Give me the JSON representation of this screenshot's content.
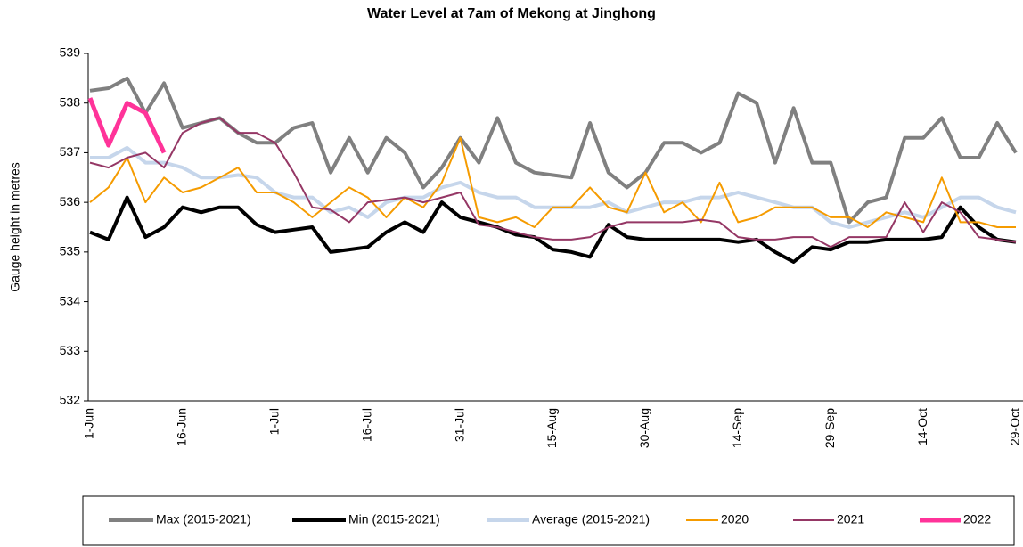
{
  "chart_data": {
    "type": "line",
    "title": "Water Level at 7am of Mekong at Jinghong",
    "y_label": "Gauge height in metres",
    "categories": [
      "1-Jun",
      null,
      null,
      null,
      null,
      "16-Jun",
      null,
      null,
      null,
      null,
      "1-Jul",
      null,
      null,
      null,
      null,
      "16-Jul",
      null,
      null,
      null,
      null,
      "31-Jul",
      null,
      null,
      null,
      null,
      "15-Aug",
      null,
      null,
      null,
      null,
      "30-Aug",
      null,
      null,
      null,
      null,
      "14-Sep",
      null,
      null,
      null,
      null,
      "29-Sep",
      null,
      null,
      null,
      null,
      "14-Oct",
      null,
      null,
      null,
      null,
      "29-Oct"
    ],
    "ylim": [
      532,
      539
    ],
    "yticks": [
      532,
      533,
      534,
      535,
      536,
      537,
      538,
      539
    ],
    "series": [
      {
        "name": "Max (2015-2021)",
        "color": "#808080",
        "width": 4,
        "values": [
          538.25,
          538.3,
          538.5,
          537.8,
          538.4,
          537.5,
          537.6,
          537.7,
          537.4,
          537.2,
          537.2,
          537.5,
          537.6,
          536.6,
          537.3,
          536.6,
          537.3,
          537.0,
          536.3,
          536.7,
          537.3,
          536.8,
          537.7,
          536.8,
          536.6,
          536.55,
          536.5,
          537.6,
          536.6,
          536.3,
          536.6,
          537.2,
          537.2,
          537.0,
          537.2,
          538.2,
          538.0,
          536.8,
          537.9,
          536.8,
          536.8,
          535.6,
          536.0,
          536.1,
          537.3,
          537.3,
          537.7,
          536.9,
          536.9,
          537.6,
          537.0
        ]
      },
      {
        "name": "Min (2015-2021)",
        "color": "#000000",
        "width": 4,
        "values": [
          535.4,
          535.25,
          536.1,
          535.3,
          535.5,
          535.9,
          535.8,
          535.9,
          535.9,
          535.55,
          535.4,
          535.45,
          535.5,
          535.0,
          535.05,
          535.1,
          535.4,
          535.6,
          535.4,
          536.0,
          535.7,
          535.6,
          535.5,
          535.35,
          535.3,
          535.05,
          535.0,
          534.9,
          535.55,
          535.3,
          535.25,
          535.25,
          535.25,
          535.25,
          535.25,
          535.2,
          535.25,
          535.0,
          534.8,
          535.1,
          535.05,
          535.2,
          535.2,
          535.25,
          535.25,
          535.25,
          535.3,
          535.9,
          535.5,
          535.25,
          535.2
        ]
      },
      {
        "name": "Average (2015-2021)",
        "color": "#c6d6eb",
        "width": 4,
        "values": [
          536.9,
          536.9,
          537.1,
          536.8,
          536.8,
          536.7,
          536.5,
          536.5,
          536.55,
          536.5,
          536.2,
          536.1,
          536.1,
          535.8,
          535.9,
          535.7,
          536.0,
          536.1,
          536.1,
          536.3,
          536.4,
          536.2,
          536.1,
          536.1,
          535.9,
          535.9,
          535.9,
          535.9,
          536.0,
          535.8,
          535.9,
          536.0,
          536.0,
          536.1,
          536.1,
          536.2,
          536.1,
          536.0,
          535.9,
          535.9,
          535.6,
          535.5,
          535.6,
          535.7,
          535.8,
          535.7,
          535.9,
          536.1,
          536.1,
          535.9,
          535.8
        ]
      },
      {
        "name": "2020",
        "color": "#f59b00",
        "width": 2,
        "values": [
          536.0,
          536.3,
          536.9,
          536.0,
          536.5,
          536.2,
          536.3,
          536.5,
          536.7,
          536.2,
          536.2,
          536.0,
          535.7,
          536.0,
          536.3,
          536.1,
          535.7,
          536.1,
          535.9,
          536.4,
          537.3,
          535.7,
          535.6,
          535.7,
          535.5,
          535.9,
          535.9,
          536.3,
          535.9,
          535.8,
          536.6,
          535.8,
          536.0,
          535.6,
          536.4,
          535.6,
          535.7,
          535.9,
          535.9,
          535.9,
          535.7,
          535.7,
          535.5,
          535.8,
          535.7,
          535.6,
          536.5,
          535.6,
          535.6,
          535.5,
          535.5
        ]
      },
      {
        "name": "2021",
        "color": "#953765",
        "width": 2,
        "values": [
          536.8,
          536.7,
          536.9,
          537.0,
          536.7,
          537.4,
          537.6,
          537.7,
          537.4,
          537.4,
          537.2,
          536.6,
          535.9,
          535.85,
          535.6,
          536.0,
          536.05,
          536.1,
          536.0,
          536.1,
          536.2,
          535.55,
          535.5,
          535.4,
          535.3,
          535.25,
          535.25,
          535.3,
          535.5,
          535.6,
          535.6,
          535.6,
          535.6,
          535.65,
          535.6,
          535.3,
          535.25,
          535.25,
          535.3,
          535.3,
          535.1,
          535.3,
          535.3,
          535.3,
          536.0,
          535.4,
          536.0,
          535.8,
          535.3,
          535.25,
          535.2
        ]
      },
      {
        "name": "2022",
        "color": "#ff3399",
        "width": 5,
        "values": [
          538.1,
          537.15,
          538.0,
          537.8,
          537.0,
          null,
          null,
          null,
          null,
          null,
          null,
          null,
          null,
          null,
          null,
          null,
          null,
          null,
          null,
          null,
          null,
          null,
          null,
          null,
          null,
          null,
          null,
          null,
          null,
          null,
          null,
          null,
          null,
          null,
          null,
          null,
          null,
          null,
          null,
          null,
          null,
          null,
          null,
          null,
          null,
          null,
          null,
          null,
          null,
          null,
          null
        ]
      }
    ]
  }
}
